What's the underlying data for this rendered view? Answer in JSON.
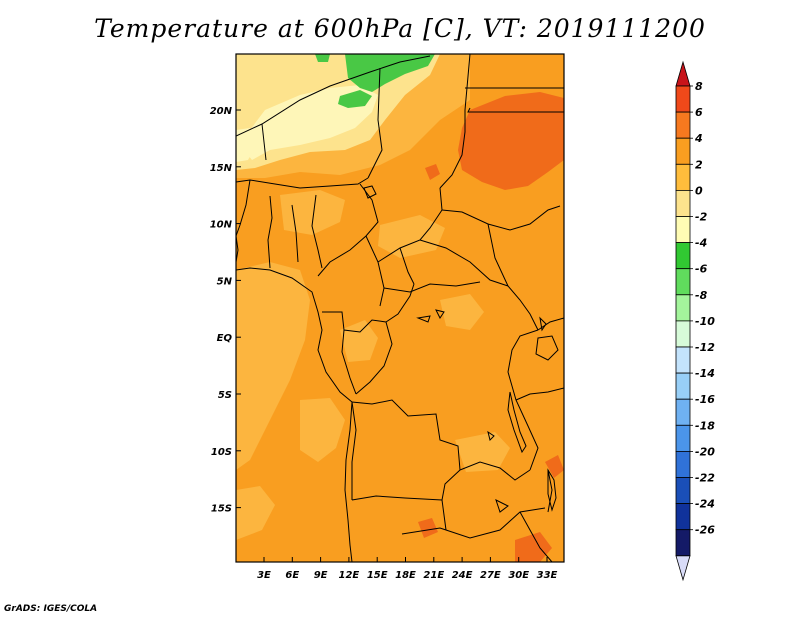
{
  "title": "Temperature at 600hPa [C], VT: 2019111200",
  "credit": "GrADS: IGES/COLA",
  "map": {
    "lon_ticks": [
      "3E",
      "6E",
      "9E",
      "12E",
      "15E",
      "18E",
      "21E",
      "24E",
      "27E",
      "30E",
      "33E"
    ],
    "lat_ticks": [
      "20N",
      "15N",
      "10N",
      "5N",
      "EQ",
      "5S",
      "10S",
      "15S"
    ]
  },
  "colorbar": {
    "labels": [
      "8",
      "6",
      "4",
      "2",
      "0",
      "-2",
      "-4",
      "-6",
      "-8",
      "-10",
      "-12",
      "-14",
      "-16",
      "-18",
      "-20",
      "-22",
      "-24",
      "-26"
    ],
    "colors": [
      "#c8141a",
      "#f0491a",
      "#f7791f",
      "#f99e20",
      "#ffbd3c",
      "#fde38d",
      "#fffcb4",
      "#31c832",
      "#60dc5d",
      "#a4f59c",
      "#d7fbd9",
      "#c3e3fc",
      "#98cff7",
      "#6fb1f2",
      "#4b95ea",
      "#3072d8",
      "#1a4fb8",
      "#10329b",
      "#141a67",
      "#d9dcf8"
    ]
  },
  "fields": {
    "dark_orange": "#f06b1a",
    "orange": "#f99e20",
    "light_orange": "#fcb53f",
    "pale_yellow": "#fde38d",
    "cream": "#fef6b8",
    "green": "#49c845"
  }
}
